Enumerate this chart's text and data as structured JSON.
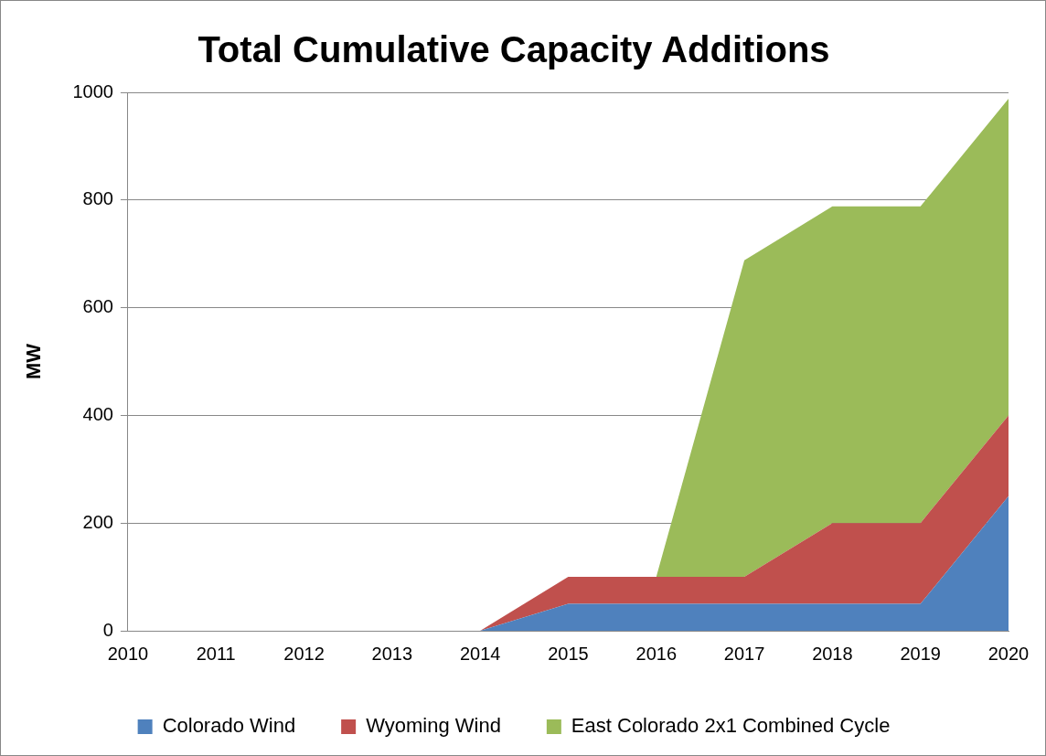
{
  "chart_data": {
    "type": "area",
    "title": "Total Cumulative Capacity Additions",
    "ylabel": "MW",
    "categories": [
      "2010",
      "2011",
      "2012",
      "2013",
      "2014",
      "2015",
      "2016",
      "2017",
      "2018",
      "2019",
      "2020"
    ],
    "stacked": true,
    "series": [
      {
        "name": "Colorado Wind",
        "color": "#4f81bd",
        "values": [
          0,
          0,
          0,
          0,
          0,
          50,
          50,
          50,
          50,
          50,
          250
        ]
      },
      {
        "name": "Wyoming Wind",
        "color": "#c0504d",
        "values": [
          0,
          0,
          0,
          0,
          0,
          50,
          50,
          50,
          150,
          150,
          150
        ]
      },
      {
        "name": "East Colorado 2x1 Combined Cycle",
        "color": "#9bbb59",
        "values": [
          null,
          null,
          null,
          null,
          null,
          null,
          0,
          588,
          588,
          588,
          588
        ]
      }
    ],
    "ylim": [
      0,
      1000
    ],
    "yticks": [
      0,
      200,
      400,
      600,
      800,
      1000
    ],
    "grid": "y",
    "legend": "bottom"
  }
}
